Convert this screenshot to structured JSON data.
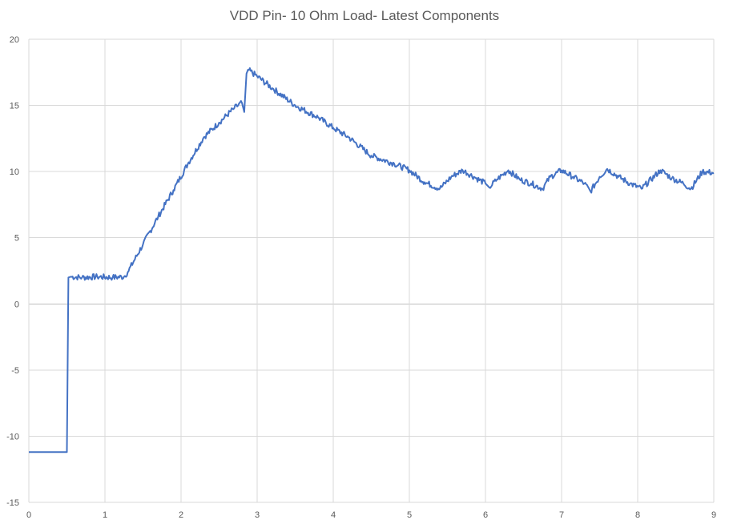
{
  "chart_data": {
    "type": "line",
    "title": "VDD Pin- 10 Ohm Load- Latest Components",
    "xlabel": "",
    "ylabel": "",
    "xlim": [
      0,
      9
    ],
    "ylim": [
      -15,
      20
    ],
    "x_ticks": [
      0,
      1,
      2,
      3,
      4,
      5,
      6,
      7,
      8,
      9
    ],
    "y_ticks": [
      -15,
      -10,
      -5,
      0,
      5,
      10,
      15,
      20
    ],
    "grid": true,
    "legend": "none",
    "series": [
      {
        "color": "#4472c4",
        "x": [
          0,
          0.5,
          0.52,
          0.55,
          0.7,
          0.9,
          1.1,
          1.25,
          1.3,
          1.5,
          1.7,
          1.9,
          2.1,
          2.3,
          2.5,
          2.7,
          2.8,
          2.83,
          2.86,
          2.88,
          3.0,
          3.2,
          3.5,
          3.8,
          4.0,
          4.2,
          4.5,
          4.8,
          5.0,
          5.2,
          5.4,
          5.55,
          5.7,
          5.85,
          6.0,
          6.05,
          6.15,
          6.3,
          6.45,
          6.6,
          6.75,
          6.85,
          7.0,
          7.15,
          7.3,
          7.38,
          7.5,
          7.6,
          7.75,
          7.9,
          8.05,
          8.3,
          8.45,
          8.6,
          8.7,
          8.85,
          9.0
        ],
        "y": [
          -11.2,
          -11.2,
          2.0,
          2.05,
          2.0,
          2.05,
          2.0,
          2.05,
          2.4,
          4.5,
          6.6,
          8.6,
          10.7,
          12.6,
          13.7,
          14.8,
          15.2,
          14.5,
          17.4,
          17.7,
          17.2,
          16.3,
          15.0,
          14.1,
          13.3,
          12.6,
          11.2,
          10.6,
          10.1,
          9.2,
          8.7,
          9.6,
          10.1,
          9.6,
          9.1,
          8.8,
          9.4,
          10.1,
          9.4,
          9.1,
          8.7,
          9.6,
          10.1,
          9.6,
          9.1,
          8.5,
          9.6,
          10.2,
          9.6,
          9.1,
          8.7,
          10.1,
          9.5,
          9.1,
          8.7,
          10.0,
          9.9
        ]
      }
    ]
  }
}
